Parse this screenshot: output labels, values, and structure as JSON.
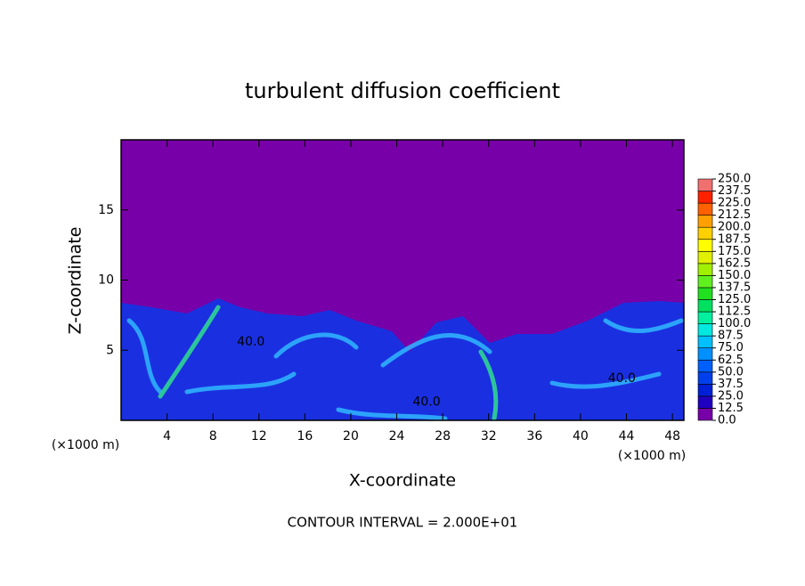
{
  "chart_data": {
    "type": "contour",
    "title": "turbulent diffusion coefficient",
    "xlabel": "X-coordinate",
    "ylabel": "Z-coordinate",
    "y_unit_label": "(×1000 m)",
    "x_unit_label": "(×1000 m)",
    "xlim": [
      0,
      49
    ],
    "xticks": [
      4,
      8,
      12,
      16,
      20,
      24,
      28,
      32,
      36,
      40,
      44,
      48
    ],
    "ylim": [
      0,
      20
    ],
    "yticks": [
      5,
      10,
      15
    ],
    "contour_labels": [
      {
        "text": "40.0",
        "x": 11.3,
        "y": 5.6
      },
      {
        "text": "40.0",
        "x": 26.6,
        "y": 1.3
      },
      {
        "text": "40.0",
        "x": 43.6,
        "y": 3.0
      }
    ],
    "colorbar": {
      "levels": [
        {
          "value": 0,
          "label": "0.0"
        },
        {
          "value": 12.5,
          "label": "12.5"
        },
        {
          "value": 25,
          "label": "25.0"
        },
        {
          "value": 37.5,
          "label": "37.5"
        },
        {
          "value": 50,
          "label": "50.0"
        },
        {
          "value": 62.5,
          "label": "62.5"
        },
        {
          "value": 75,
          "label": "75.0"
        },
        {
          "value": 87.5,
          "label": "87.5"
        },
        {
          "value": 100,
          "label": "100.0"
        },
        {
          "value": 112.5,
          "label": "112.5"
        },
        {
          "value": 125,
          "label": "125.0"
        },
        {
          "value": 137.5,
          "label": "137.5"
        },
        {
          "value": 150,
          "label": "150.0"
        },
        {
          "value": 162.5,
          "label": "162.5"
        },
        {
          "value": 175,
          "label": "175.0"
        },
        {
          "value": 187.5,
          "label": "187.5"
        },
        {
          "value": 200,
          "label": "200.0"
        },
        {
          "value": 212.5,
          "label": "212.5"
        },
        {
          "value": 225,
          "label": "225.0"
        },
        {
          "value": 237.5,
          "label": "237.5"
        },
        {
          "value": 250,
          "label": "250.0"
        }
      ],
      "colors": [
        "#7800a8",
        "#2000c0",
        "#0020d8",
        "#0040ec",
        "#0060ff",
        "#0090ff",
        "#00c0ff",
        "#00e8e0",
        "#00f0a0",
        "#00e060",
        "#20e020",
        "#60f020",
        "#a0f000",
        "#e0f000",
        "#ffff00",
        "#ffd000",
        "#ffa000",
        "#ff6000",
        "#ff2000",
        "#f07070"
      ]
    },
    "footer": "CONTOUR INTERVAL = 2.000E+01"
  }
}
